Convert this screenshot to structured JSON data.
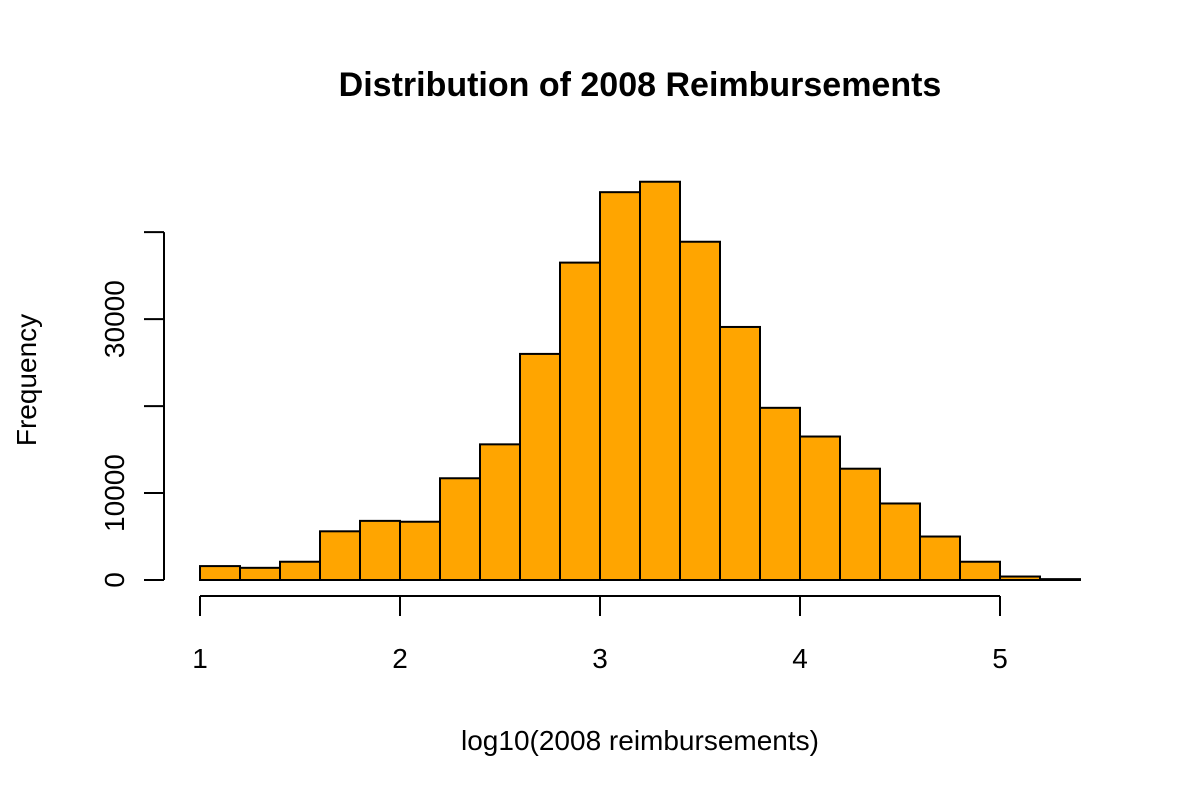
{
  "chart_data": {
    "type": "bar",
    "title": "Distribution of 2008 Reimbursements",
    "xlabel": "log10(2008 reimbursements)",
    "ylabel": "Frequency",
    "bin_edges": [
      1.0,
      1.2,
      1.4,
      1.6,
      1.8,
      2.0,
      2.2,
      2.4,
      2.6,
      2.8,
      3.0,
      3.2,
      3.4,
      3.6,
      3.8,
      4.0,
      4.2,
      4.4,
      4.6,
      4.8,
      5.0,
      5.2,
      5.4
    ],
    "values": [
      1600,
      1400,
      2100,
      5600,
      6800,
      6700,
      11700,
      15600,
      26000,
      36500,
      44600,
      45800,
      38900,
      29100,
      19800,
      16500,
      12800,
      8800,
      5000,
      2100,
      400,
      100
    ],
    "xlim": [
      1,
      5.4
    ],
    "ylim": [
      0,
      46000
    ],
    "x_ticks": [
      1,
      2,
      3,
      4,
      5
    ],
    "y_ticks": [
      0,
      10000,
      20000,
      30000,
      40000
    ],
    "y_tick_labels": [
      "0",
      "10000",
      "",
      "30000",
      ""
    ],
    "bar_color": "#FFA500",
    "grid": false
  }
}
